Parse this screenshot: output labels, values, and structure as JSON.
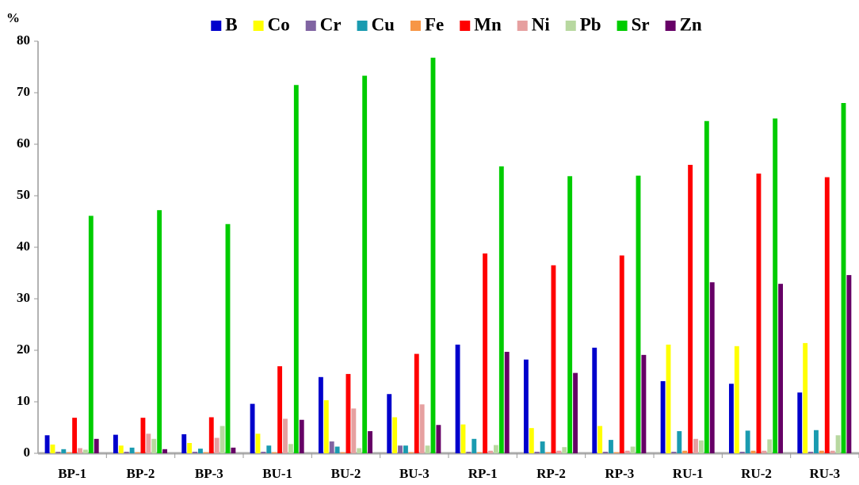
{
  "chart_data": {
    "type": "bar",
    "y_label": "%",
    "categories": [
      "BP-1",
      "BP-2",
      "BP-3",
      "BU-1",
      "BU-2",
      "BU-3",
      "RP-1",
      "RP-2",
      "RP-3",
      "RU-1",
      "RU-2",
      "RU-3"
    ],
    "series": [
      {
        "name": "B",
        "color": "#0000cc",
        "values": [
          3.5,
          3.6,
          3.7,
          9.6,
          14.8,
          11.5,
          21.1,
          18.2,
          20.5,
          14.0,
          13.5,
          11.8
        ]
      },
      {
        "name": "Co",
        "color": "#ffff00",
        "values": [
          1.7,
          1.5,
          2.0,
          3.8,
          10.3,
          7.0,
          5.6,
          4.9,
          5.3,
          21.1,
          20.8,
          21.4
        ]
      },
      {
        "name": "Cr",
        "color": "#8064a2",
        "values": [
          0.3,
          0.3,
          0.3,
          0.3,
          2.3,
          1.5,
          0.3,
          0.3,
          0.3,
          0.3,
          0.3,
          0.3
        ]
      },
      {
        "name": "Cu",
        "color": "#1a9bb0",
        "values": [
          0.8,
          1.1,
          0.9,
          1.5,
          1.3,
          1.5,
          2.8,
          2.3,
          2.6,
          4.3,
          4.4,
          4.5
        ]
      },
      {
        "name": "Fe",
        "color": "#f79646",
        "values": [
          0.2,
          0.2,
          0.2,
          0.2,
          0.2,
          0.2,
          0.2,
          0.2,
          0.2,
          0.5,
          0.5,
          0.5
        ]
      },
      {
        "name": "Mn",
        "color": "#ff0000",
        "values": [
          6.9,
          6.9,
          7.0,
          16.9,
          15.4,
          19.3,
          38.8,
          36.5,
          38.4,
          56.0,
          54.3,
          53.6
        ]
      },
      {
        "name": "Ni",
        "color": "#e6a0a0",
        "values": [
          1.0,
          3.8,
          3.0,
          6.7,
          8.7,
          9.5,
          0.5,
          0.5,
          0.5,
          2.8,
          0.5,
          0.5
        ]
      },
      {
        "name": "Pb",
        "color": "#b8d8a0",
        "values": [
          0.7,
          2.8,
          5.3,
          1.8,
          1.0,
          1.5,
          1.6,
          1.2,
          1.3,
          2.5,
          2.7,
          3.5
        ]
      },
      {
        "name": "Sr",
        "color": "#00cc00",
        "values": [
          46.1,
          47.2,
          44.5,
          71.5,
          73.3,
          76.8,
          55.7,
          53.8,
          53.9,
          64.5,
          65.0,
          68.0
        ]
      },
      {
        "name": "Zn",
        "color": "#660066",
        "values": [
          2.8,
          0.8,
          1.1,
          6.5,
          4.3,
          5.5,
          19.7,
          15.6,
          19.1,
          33.2,
          32.9,
          34.6
        ]
      }
    ],
    "ylim": [
      0,
      80
    ],
    "yticks": [
      0,
      10,
      20,
      30,
      40,
      50,
      60,
      70,
      80
    ],
    "grid": false,
    "legend": "top"
  }
}
